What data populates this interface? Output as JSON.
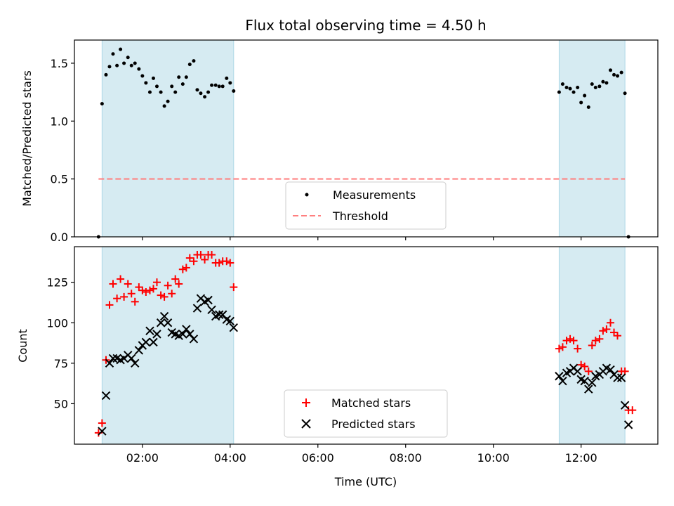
{
  "title": "Flux total observing time = 4.50 h",
  "colors": {
    "shade": "#add8e6",
    "measurement": "#000000",
    "threshold": "#ff7f7f",
    "matched": "#ff0000",
    "predicted": "#000000"
  },
  "chart_data": [
    {
      "type": "scatter",
      "ylabel": "Matched/Predicted stars",
      "xlim": [
        0.45,
        13.75
      ],
      "ylim": [
        0,
        1.7
      ],
      "yticks": [
        0,
        0.5,
        1.0,
        1.5
      ],
      "ytick_labels": [
        "0.0",
        "0.5",
        "1.0",
        "1.5"
      ],
      "threshold": 0.5,
      "shaded_ranges": [
        [
          1.08,
          4.08
        ],
        [
          11.5,
          13.0
        ]
      ],
      "legend": {
        "placement": "lower-center",
        "entries": [
          "Measurements",
          "Threshold"
        ]
      },
      "series": [
        {
          "name": "Measurements",
          "x": [
            1.0,
            1.08,
            1.17,
            1.25,
            1.33,
            1.42,
            1.5,
            1.58,
            1.67,
            1.75,
            1.83,
            1.92,
            2.0,
            2.08,
            2.17,
            2.25,
            2.33,
            2.42,
            2.5,
            2.58,
            2.67,
            2.75,
            2.83,
            2.92,
            3.0,
            3.08,
            3.17,
            3.25,
            3.33,
            3.42,
            3.5,
            3.58,
            3.67,
            3.75,
            3.83,
            3.92,
            4.0,
            4.08,
            11.5,
            11.58,
            11.67,
            11.75,
            11.83,
            11.92,
            12.0,
            12.08,
            12.17,
            12.25,
            12.33,
            12.42,
            12.5,
            12.58,
            12.67,
            12.75,
            12.83,
            12.92,
            13.0,
            13.08
          ],
          "y": [
            0.0,
            1.15,
            1.4,
            1.47,
            1.58,
            1.48,
            1.62,
            1.5,
            1.55,
            1.48,
            1.5,
            1.45,
            1.39,
            1.33,
            1.25,
            1.37,
            1.3,
            1.25,
            1.13,
            1.17,
            1.3,
            1.25,
            1.38,
            1.32,
            1.38,
            1.49,
            1.52,
            1.27,
            1.24,
            1.21,
            1.25,
            1.31,
            1.31,
            1.3,
            1.3,
            1.37,
            1.33,
            1.26,
            1.25,
            1.32,
            1.29,
            1.28,
            1.25,
            1.29,
            1.16,
            1.22,
            1.12,
            1.32,
            1.29,
            1.3,
            1.34,
            1.33,
            1.44,
            1.4,
            1.39,
            1.42,
            1.24,
            0.0
          ]
        },
        {
          "name": "Threshold",
          "x": [
            1.0,
            13.0
          ],
          "y": [
            0.5,
            0.5
          ]
        }
      ]
    },
    {
      "type": "scatter",
      "xlabel": "Time (UTC)",
      "ylabel": "Count",
      "xlim": [
        0.45,
        13.75
      ],
      "ylim": [
        25,
        147
      ],
      "yticks": [
        50,
        75,
        100,
        125
      ],
      "xticks": [
        2,
        4,
        6,
        8,
        10,
        12
      ],
      "xtick_labels": [
        "02:00",
        "04:00",
        "06:00",
        "08:00",
        "10:00",
        "12:00"
      ],
      "shaded_ranges": [
        [
          1.08,
          4.08
        ],
        [
          11.5,
          13.0
        ]
      ],
      "legend": {
        "placement": "lower-center",
        "entries": [
          "Matched stars",
          "Predicted stars"
        ]
      },
      "series": [
        {
          "name": "Matched stars",
          "x": [
            1.0,
            1.08,
            1.17,
            1.25,
            1.33,
            1.42,
            1.5,
            1.58,
            1.67,
            1.75,
            1.83,
            1.92,
            2.0,
            2.08,
            2.17,
            2.25,
            2.33,
            2.42,
            2.5,
            2.58,
            2.67,
            2.75,
            2.83,
            2.92,
            3.0,
            3.08,
            3.17,
            3.25,
            3.33,
            3.42,
            3.5,
            3.58,
            3.67,
            3.75,
            3.83,
            3.92,
            4.0,
            4.08,
            11.5,
            11.58,
            11.67,
            11.75,
            11.83,
            11.92,
            12.0,
            12.08,
            12.17,
            12.25,
            12.33,
            12.42,
            12.5,
            12.58,
            12.67,
            12.75,
            12.83,
            12.92,
            13.0,
            13.08,
            13.17
          ],
          "y": [
            32,
            38,
            77,
            111,
            124,
            115,
            127,
            116,
            124,
            118,
            113,
            122,
            120,
            119,
            120,
            121,
            125,
            117,
            116,
            123,
            118,
            127,
            124,
            133,
            134,
            140,
            138,
            142,
            142,
            139,
            142,
            142,
            137,
            137,
            138,
            138,
            137,
            122,
            84,
            85,
            89,
            90,
            89,
            84,
            74,
            73,
            70,
            86,
            89,
            90,
            95,
            96,
            100,
            94,
            92,
            70,
            70,
            46,
            46
          ]
        },
        {
          "name": "Predicted stars",
          "x": [
            1.08,
            1.17,
            1.25,
            1.33,
            1.42,
            1.5,
            1.58,
            1.67,
            1.75,
            1.83,
            1.92,
            2.0,
            2.08,
            2.17,
            2.25,
            2.33,
            2.42,
            2.5,
            2.58,
            2.67,
            2.75,
            2.83,
            2.92,
            3.0,
            3.08,
            3.17,
            3.25,
            3.33,
            3.42,
            3.5,
            3.58,
            3.67,
            3.75,
            3.83,
            3.92,
            4.0,
            4.08,
            11.5,
            11.58,
            11.67,
            11.75,
            11.83,
            11.92,
            12.0,
            12.08,
            12.17,
            12.25,
            12.33,
            12.42,
            12.5,
            12.58,
            12.67,
            12.75,
            12.83,
            12.92,
            13.0,
            13.08
          ],
          "y": [
            33,
            55,
            75,
            78,
            78,
            77,
            78,
            80,
            78,
            75,
            83,
            86,
            88,
            95,
            88,
            93,
            100,
            104,
            100,
            94,
            93,
            92,
            93,
            96,
            93,
            90,
            109,
            115,
            113,
            114,
            108,
            104,
            105,
            105,
            102,
            101,
            97,
            67,
            64,
            69,
            70,
            72,
            70,
            65,
            64,
            59,
            63,
            67,
            68,
            70,
            72,
            71,
            68,
            66,
            66,
            49,
            37
          ]
        }
      ]
    }
  ]
}
